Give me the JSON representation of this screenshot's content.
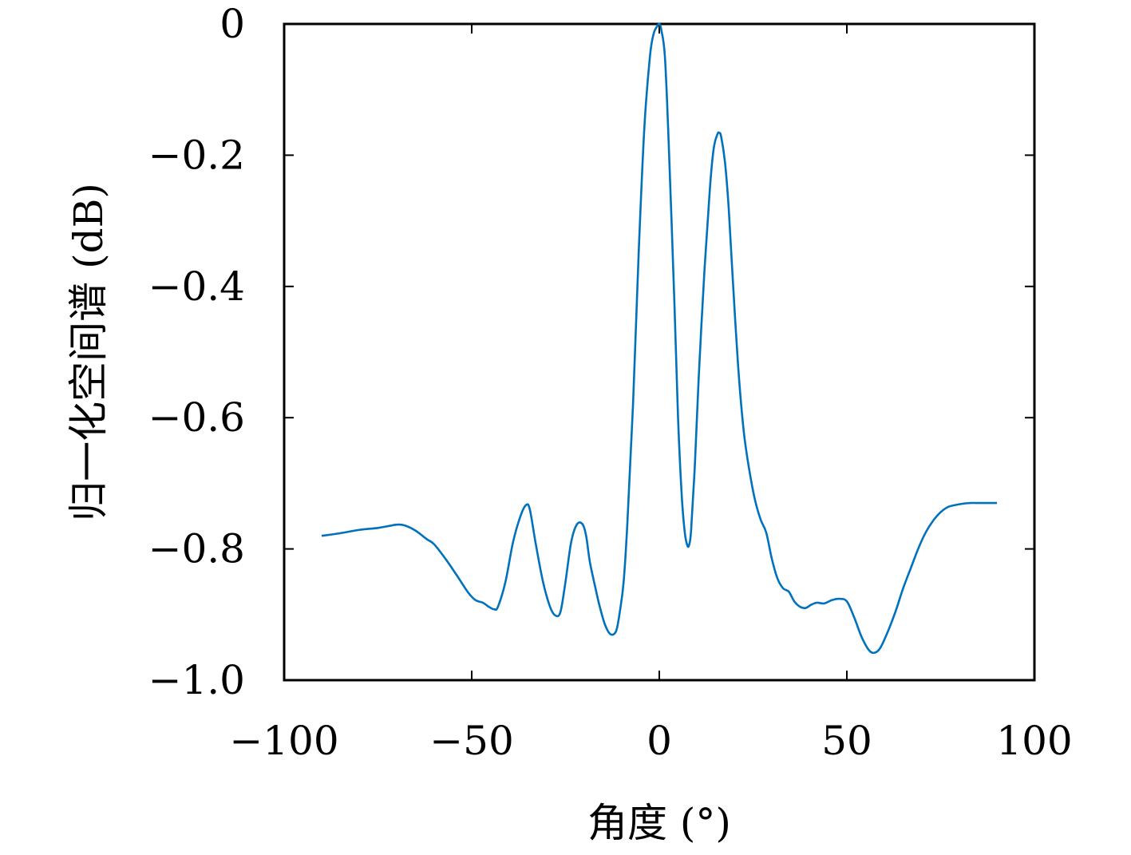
{
  "chart_data": {
    "type": "line",
    "title": "",
    "xlabel": "角度 (°)",
    "ylabel": "归一化空间谱 (dB)",
    "xlim": [
      -100,
      100
    ],
    "ylim": [
      -1.0,
      0
    ],
    "xticks": [
      -100,
      -50,
      0,
      50,
      100
    ],
    "xtick_labels": [
      "−100",
      "−50",
      "0",
      "50",
      "100"
    ],
    "yticks": [
      0,
      -0.2,
      -0.4,
      -0.6,
      -0.8,
      -1.0
    ],
    "ytick_labels": [
      "0",
      "−0.2",
      "−0.4",
      "−0.6",
      "−0.8",
      "−1.0"
    ],
    "grid": false,
    "series": [
      {
        "color": "#0072bd",
        "x": [
          -90,
          -85,
          -80,
          -75,
          -72,
          -70,
          -68,
          -65,
          -62,
          -60,
          -57,
          -54,
          -51,
          -49,
          -47,
          -45.5,
          -44,
          -43,
          -41,
          -39,
          -37,
          -35.5,
          -34.5,
          -33,
          -31,
          -29,
          -27.5,
          -26.3,
          -25,
          -23.5,
          -22,
          -20.5,
          -19.5,
          -18.5,
          -17,
          -16,
          -14.5,
          -13,
          -11.5,
          -10.5,
          -9.5,
          -8.5,
          -7,
          -5.5,
          -4,
          -2.5,
          -1.5,
          -0.5,
          0,
          0.5,
          1.5,
          2.5,
          4,
          5,
          6,
          6.8,
          7.5,
          8,
          8.5,
          9.5,
          10.5,
          12,
          13.5,
          14.5,
          15.5,
          16,
          16.5,
          17.5,
          18.5,
          19.5,
          21,
          22.5,
          24,
          25.5,
          27,
          28.5,
          30,
          31.5,
          33,
          34.5,
          36,
          37.5,
          39,
          40.5,
          42,
          44,
          46,
          48,
          50,
          52,
          54,
          56,
          57.5,
          59,
          61,
          63,
          65,
          67,
          69,
          71,
          73,
          75,
          77,
          79,
          81,
          83,
          85,
          87,
          89,
          90
        ],
        "y": [
          -0.78,
          -0.776,
          -0.771,
          -0.768,
          -0.765,
          -0.763,
          -0.764,
          -0.772,
          -0.785,
          -0.793,
          -0.815,
          -0.84,
          -0.866,
          -0.878,
          -0.882,
          -0.888,
          -0.892,
          -0.888,
          -0.85,
          -0.79,
          -0.75,
          -0.733,
          -0.74,
          -0.79,
          -0.85,
          -0.89,
          -0.902,
          -0.895,
          -0.85,
          -0.79,
          -0.763,
          -0.762,
          -0.78,
          -0.82,
          -0.86,
          -0.885,
          -0.915,
          -0.93,
          -0.925,
          -0.895,
          -0.85,
          -0.76,
          -0.58,
          -0.35,
          -0.16,
          -0.05,
          -0.015,
          -0.003,
          0.0,
          -0.008,
          -0.05,
          -0.18,
          -0.42,
          -0.6,
          -0.72,
          -0.775,
          -0.795,
          -0.793,
          -0.77,
          -0.67,
          -0.54,
          -0.38,
          -0.25,
          -0.19,
          -0.168,
          -0.166,
          -0.172,
          -0.21,
          -0.28,
          -0.38,
          -0.52,
          -0.62,
          -0.68,
          -0.725,
          -0.755,
          -0.775,
          -0.815,
          -0.845,
          -0.86,
          -0.865,
          -0.88,
          -0.888,
          -0.89,
          -0.885,
          -0.882,
          -0.883,
          -0.878,
          -0.876,
          -0.88,
          -0.905,
          -0.935,
          -0.955,
          -0.958,
          -0.95,
          -0.925,
          -0.895,
          -0.86,
          -0.83,
          -0.8,
          -0.775,
          -0.757,
          -0.744,
          -0.736,
          -0.733,
          -0.731,
          -0.73,
          -0.73,
          -0.73,
          -0.73,
          -0.73
        ]
      }
    ]
  }
}
